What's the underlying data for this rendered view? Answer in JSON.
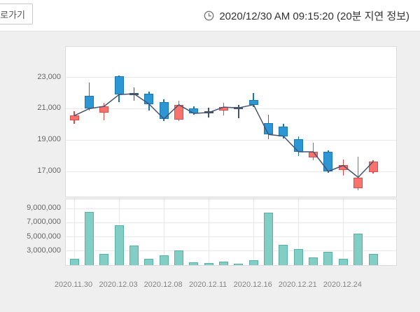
{
  "header": {
    "button_label": "로가기",
    "timestamp": "2020/12/30 AM 09:15:20 (20분 지연 정보)"
  },
  "chart_data": {
    "type": "candlestick",
    "title": "",
    "legend": "none",
    "grid": "on",
    "price_axis": {
      "tick_labels": [
        "23,000",
        "21,000",
        "19,000",
        "17,000"
      ],
      "tick_values": [
        23000,
        21000,
        19000,
        17000
      ],
      "approx_range": [
        15400,
        24950
      ]
    },
    "volume_axis": {
      "tick_labels": [
        "9,000,000",
        "7,000,000",
        "5,000,000",
        "3,000,000"
      ],
      "tick_values": [
        9000000,
        7000000,
        5000000,
        3000000
      ],
      "baseline_value": 1000000
    },
    "x_tick_labels": [
      "2020.11.30",
      "2020.12.03",
      "2020.12.08",
      "2020.12.11",
      "2020.12.16",
      "2020.12.21",
      "2020.12.24"
    ],
    "x_tick_candle_indices": [
      0,
      3,
      6,
      9,
      12,
      15,
      18
    ],
    "overlay_line": "close-price",
    "candles": [
      {
        "open": 20250,
        "high": 20850,
        "low": 20050,
        "close": 20550,
        "kind": "up",
        "volume": 1900000
      },
      {
        "open": 21800,
        "high": 22650,
        "low": 20900,
        "close": 21000,
        "kind": "down",
        "volume": 8500000
      },
      {
        "open": 20750,
        "high": 21350,
        "low": 20250,
        "close": 21150,
        "kind": "up",
        "volume": 2600000
      },
      {
        "open": 23050,
        "high": 23100,
        "low": 21400,
        "close": 21900,
        "kind": "down",
        "volume": 6600000
      },
      {
        "open": 21950,
        "high": 22350,
        "low": 21500,
        "close": 21950,
        "kind": "doji",
        "volume": 3800000
      },
      {
        "open": 21950,
        "high": 22100,
        "low": 20900,
        "close": 21300,
        "kind": "down",
        "volume": 1900000
      },
      {
        "open": 21400,
        "high": 21600,
        "low": 20200,
        "close": 20350,
        "kind": "down",
        "volume": 2400000
      },
      {
        "open": 20300,
        "high": 21500,
        "low": 20200,
        "close": 21250,
        "kind": "up",
        "volume": 3100000
      },
      {
        "open": 21000,
        "high": 21150,
        "low": 20600,
        "close": 20700,
        "kind": "down",
        "volume": 1400000
      },
      {
        "open": 20750,
        "high": 21050,
        "low": 20450,
        "close": 20750,
        "kind": "doji",
        "volume": 1300000
      },
      {
        "open": 20900,
        "high": 21350,
        "low": 20550,
        "close": 21100,
        "kind": "up",
        "volume": 1500000
      },
      {
        "open": 21050,
        "high": 21250,
        "low": 20400,
        "close": 21050,
        "kind": "doji",
        "volume": 1200000
      },
      {
        "open": 21550,
        "high": 22000,
        "low": 21100,
        "close": 21250,
        "kind": "down",
        "volume": 1700000
      },
      {
        "open": 20100,
        "high": 20600,
        "low": 19050,
        "close": 19350,
        "kind": "down",
        "volume": 8400000
      },
      {
        "open": 19850,
        "high": 20050,
        "low": 19100,
        "close": 19250,
        "kind": "down",
        "volume": 3900000
      },
      {
        "open": 19050,
        "high": 19250,
        "low": 18000,
        "close": 18250,
        "kind": "down",
        "volume": 3300000
      },
      {
        "open": 17900,
        "high": 18850,
        "low": 17700,
        "close": 18250,
        "kind": "up",
        "volume": 2100000
      },
      {
        "open": 18250,
        "high": 18350,
        "low": 16900,
        "close": 17000,
        "kind": "down",
        "volume": 2900000
      },
      {
        "open": 17100,
        "high": 17750,
        "low": 16750,
        "close": 17380,
        "kind": "up",
        "volume": 1900000
      },
      {
        "open": 15950,
        "high": 17950,
        "low": 15800,
        "close": 16620,
        "kind": "up",
        "volume": 5400000
      },
      {
        "open": 16950,
        "high": 17700,
        "low": 16850,
        "close": 17620,
        "kind": "up",
        "volume": 2600000
      }
    ],
    "colors": {
      "up_fill": "#f8736e",
      "up_border": "#df4b46",
      "down_fill": "#2d97d6",
      "down_border": "#1878b4",
      "doji": "#46536e",
      "close_line": "#46536e",
      "volume_fill": "#82cec4",
      "volume_border": "#56b2a6"
    }
  }
}
